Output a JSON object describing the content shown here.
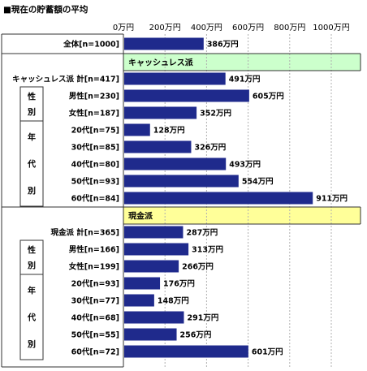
{
  "chart_data": {
    "type": "bar",
    "orientation": "horizontal",
    "title": "■現在の貯蓄額の平均",
    "unit": "万円",
    "xlim": [
      0,
      1000
    ],
    "ticks": [
      "0万円",
      "200万円",
      "400万円",
      "600万円",
      "800万円",
      "1000万円"
    ],
    "tick_values": [
      0,
      200,
      400,
      600,
      800,
      1000
    ],
    "grid": true,
    "sections": [
      {
        "name": "キャッシュレス派",
        "band_color": "#ccffcc"
      },
      {
        "name": "現金派",
        "band_color": "#ffff99"
      }
    ],
    "groups": [
      {
        "label": "性別",
        "chars": [
          "性",
          "別"
        ]
      },
      {
        "label": "年代別",
        "chars": [
          "年",
          "代",
          "別"
        ]
      },
      {
        "label": "性別",
        "chars": [
          "性",
          "別"
        ]
      },
      {
        "label": "年代別",
        "chars": [
          "年",
          "代",
          "別"
        ]
      }
    ],
    "rows": [
      {
        "label": "全体[n=1000]",
        "value": 386,
        "value_label": "386万円"
      },
      {
        "label": "キャッシュレス派 計[n=417]",
        "value": 491,
        "value_label": "491万円"
      },
      {
        "label": "男性[n=230]",
        "value": 605,
        "value_label": "605万円"
      },
      {
        "label": "女性[n=187]",
        "value": 352,
        "value_label": "352万円"
      },
      {
        "label": "20代[n=75]",
        "value": 128,
        "value_label": "128万円"
      },
      {
        "label": "30代[n=85]",
        "value": 326,
        "value_label": "326万円"
      },
      {
        "label": "40代[n=80]",
        "value": 493,
        "value_label": "493万円"
      },
      {
        "label": "50代[n=93]",
        "value": 554,
        "value_label": "554万円"
      },
      {
        "label": "60代[n=84]",
        "value": 911,
        "value_label": "911万円"
      },
      {
        "label": "現金派 計[n=365]",
        "value": 287,
        "value_label": "287万円"
      },
      {
        "label": "男性[n=166]",
        "value": 313,
        "value_label": "313万円"
      },
      {
        "label": "女性[n=199]",
        "value": 266,
        "value_label": "266万円"
      },
      {
        "label": "20代[n=93]",
        "value": 176,
        "value_label": "176万円"
      },
      {
        "label": "30代[n=77]",
        "value": 148,
        "value_label": "148万円"
      },
      {
        "label": "40代[n=68]",
        "value": 291,
        "value_label": "291万円"
      },
      {
        "label": "50代[n=55]",
        "value": 256,
        "value_label": "256万円"
      },
      {
        "label": "60代[n=72]",
        "value": 601,
        "value_label": "601万円"
      }
    ],
    "colors": {
      "bar": "#1f2a8c",
      "grid": "#b0b0b0",
      "frame": "#333333"
    }
  }
}
